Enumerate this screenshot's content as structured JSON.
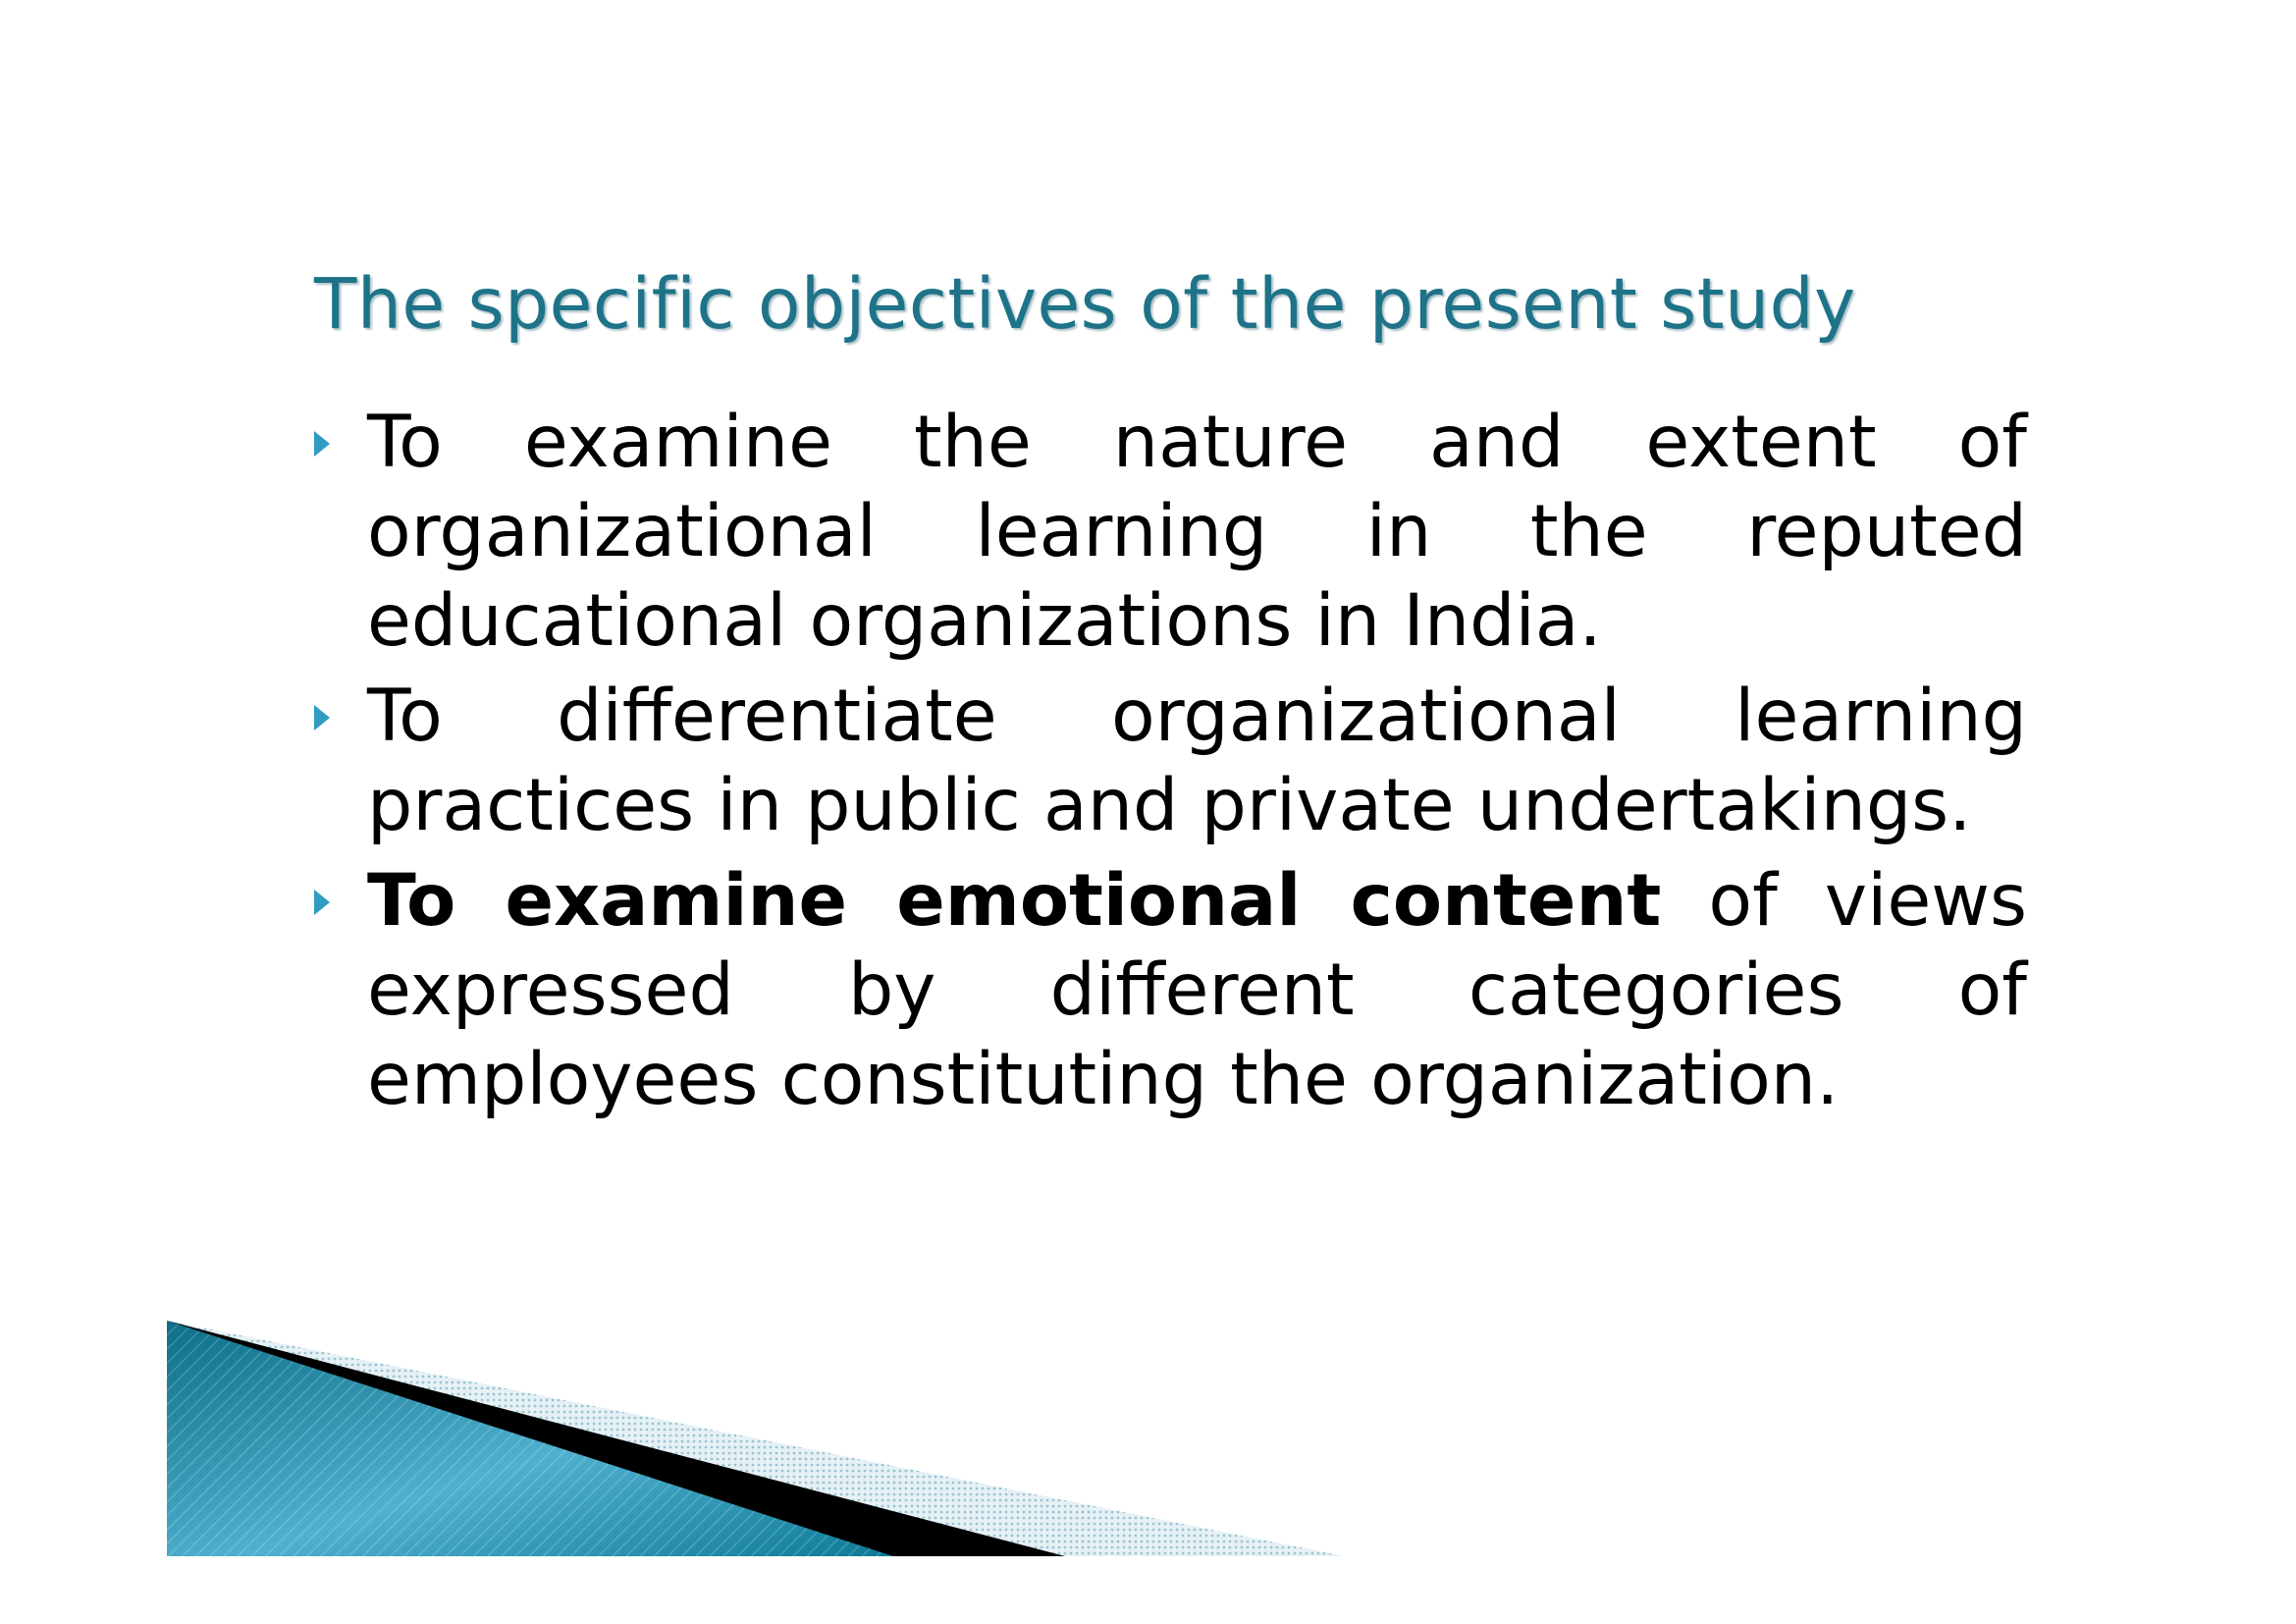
{
  "slide": {
    "title": "The specific objectives of the present study",
    "bullets": [
      {
        "text": "To examine the nature and extent of organizational learning in the reputed educational organizations in India."
      },
      {
        "text": "To differentiate organizational learning practices in public and private undertakings."
      },
      {
        "emphasis": "To examine emotional content",
        "text": " of views expressed by different categories of employees constituting the organization."
      }
    ]
  },
  "colors": {
    "title": "#1e7388",
    "bullet_marker": "#2f9cc0",
    "body_text": "#000000",
    "decor_teal": "#0f7f9b",
    "decor_black": "#000000",
    "decor_light": "#c9dde5"
  },
  "icons": {
    "bullet": "triangle-right-icon",
    "footer": "diagonal-wedge-decoration"
  }
}
